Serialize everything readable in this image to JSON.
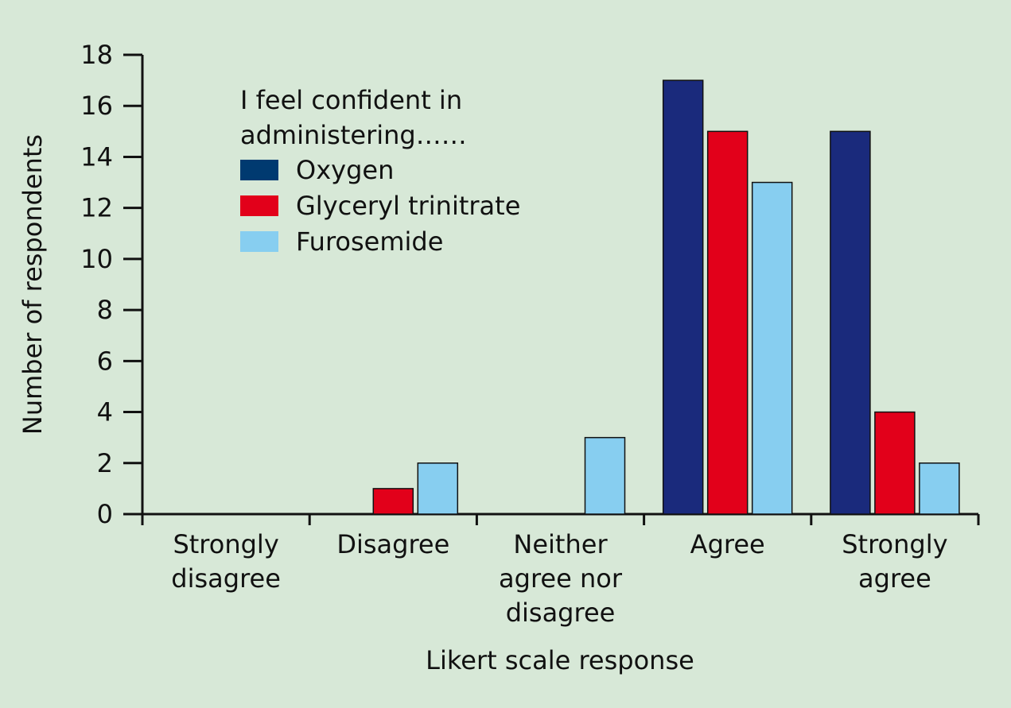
{
  "chart_data": {
    "type": "bar",
    "categories": [
      [
        "Strongly",
        "disagree"
      ],
      [
        "Disagree"
      ],
      [
        "Neither",
        "agree nor",
        "disagree"
      ],
      [
        "Agree"
      ],
      [
        "Strongly",
        "agree"
      ]
    ],
    "series": [
      {
        "name": "Oxygen",
        "color": "#1a2a7c",
        "legend_color": "#003a70",
        "values": [
          0,
          0,
          0,
          17,
          15
        ]
      },
      {
        "name": "Glyceryl trinitrate",
        "color": "#e2001a",
        "legend_color": "#e2001a",
        "values": [
          0,
          1,
          0,
          15,
          4
        ]
      },
      {
        "name": "Furosemide",
        "color": "#87cef0",
        "legend_color": "#87cef0",
        "values": [
          0,
          2,
          3,
          13,
          2
        ]
      }
    ],
    "legend_title": [
      "I feel confident in",
      "administering……"
    ],
    "xlabel": "Likert scale response",
    "ylabel": "Number of respondents",
    "ylim": [
      0,
      18
    ],
    "yticks": [
      0,
      2,
      4,
      6,
      8,
      10,
      12,
      14,
      16,
      18
    ],
    "grid": false,
    "legend_position": "top-left"
  }
}
